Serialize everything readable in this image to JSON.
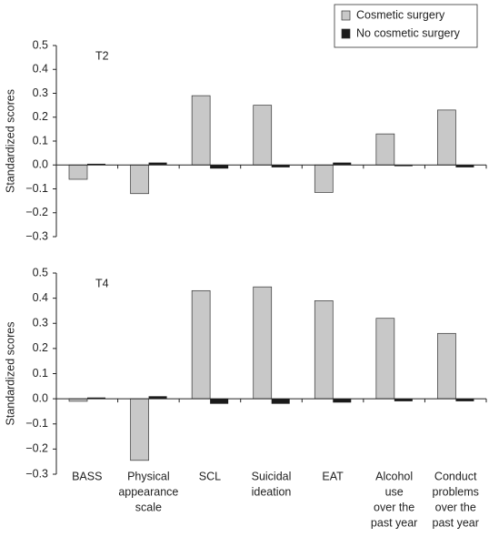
{
  "chart_data": [
    {
      "type": "bar",
      "annotation": "T2",
      "y_label": "Standardized scores",
      "series": [
        {
          "name": "Cosmetic surgery",
          "color": "#c8c8c8",
          "values": [
            -0.06,
            -0.12,
            0.29,
            0.25,
            -0.115,
            0.13,
            0.23
          ]
        },
        {
          "name": "No cosmetic surgery",
          "color": "#1a1a1a",
          "values": [
            0.005,
            0.01,
            -0.015,
            -0.01,
            0.01,
            -0.005,
            -0.01
          ]
        }
      ],
      "ylim": [
        -0.3,
        0.5
      ],
      "yticks": [
        0.5,
        0.4,
        0.3,
        0.2,
        0.1,
        {
          "value": 0,
          "label": "0.0"
        },
        {
          "value": -0.1,
          "label": "−0.1"
        },
        {
          "value": -0.2,
          "label": "−0.2"
        },
        {
          "value": -0.3,
          "label": "−0.3"
        }
      ],
      "legend": "upper right"
    },
    {
      "type": "bar",
      "annotation": "T4",
      "y_label": "Standardized scores",
      "categories": [
        [
          "BASS"
        ],
        [
          "Physical",
          "appearance",
          "scale"
        ],
        [
          "SCL"
        ],
        [
          "Suicidal",
          "ideation"
        ],
        [
          "EAT"
        ],
        [
          "Alcohol",
          "use",
          "over the",
          "past year"
        ],
        [
          "Conduct",
          "problems",
          "over the",
          "past year"
        ]
      ],
      "series": [
        {
          "name": "Cosmetic surgery",
          "color": "#c8c8c8",
          "values": [
            -0.01,
            -0.245,
            0.43,
            0.445,
            0.39,
            0.32,
            0.26
          ]
        },
        {
          "name": "No cosmetic surgery",
          "color": "#1a1a1a",
          "values": [
            0.005,
            0.01,
            -0.02,
            -0.02,
            -0.015,
            -0.01,
            -0.01
          ]
        }
      ],
      "ylim": [
        -0.3,
        0.5
      ],
      "yticks": [
        0.5,
        0.4,
        0.3,
        0.2,
        0.1,
        {
          "value": 0,
          "label": "0.0"
        },
        {
          "value": -0.1,
          "label": "−0.1"
        },
        {
          "value": -0.2,
          "label": "−0.2"
        },
        {
          "value": -0.3,
          "label": "−0.3"
        }
      ]
    }
  ]
}
